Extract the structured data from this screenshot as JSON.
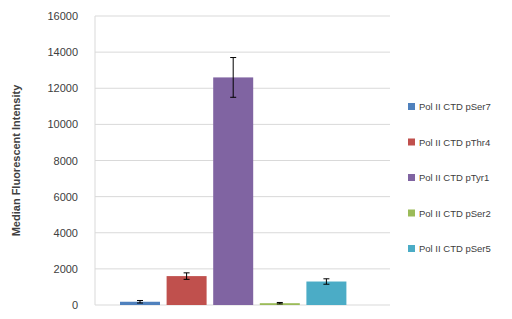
{
  "chart_data": {
    "type": "bar",
    "y_label": "Median Fluorescent Intensity",
    "categories": [
      "Pol II CTD pSer7",
      "Pol II CTD pThr4",
      "Pol II CTD pTyr1",
      "Pol II CTD pSer2",
      "Pol II CTD pSer5"
    ],
    "values": [
      180,
      1600,
      12600,
      100,
      1300
    ],
    "errors": [
      70,
      180,
      1100,
      40,
      150
    ],
    "colors": [
      "#4f81bd",
      "#c0504d",
      "#8064a2",
      "#9bbb59",
      "#4bacc6"
    ],
    "ylim": [
      0,
      16000
    ],
    "yticks": [
      0,
      2000,
      4000,
      6000,
      8000,
      10000,
      12000,
      14000,
      16000
    ],
    "grid": true,
    "legend": "right",
    "tick_labels": "y"
  }
}
